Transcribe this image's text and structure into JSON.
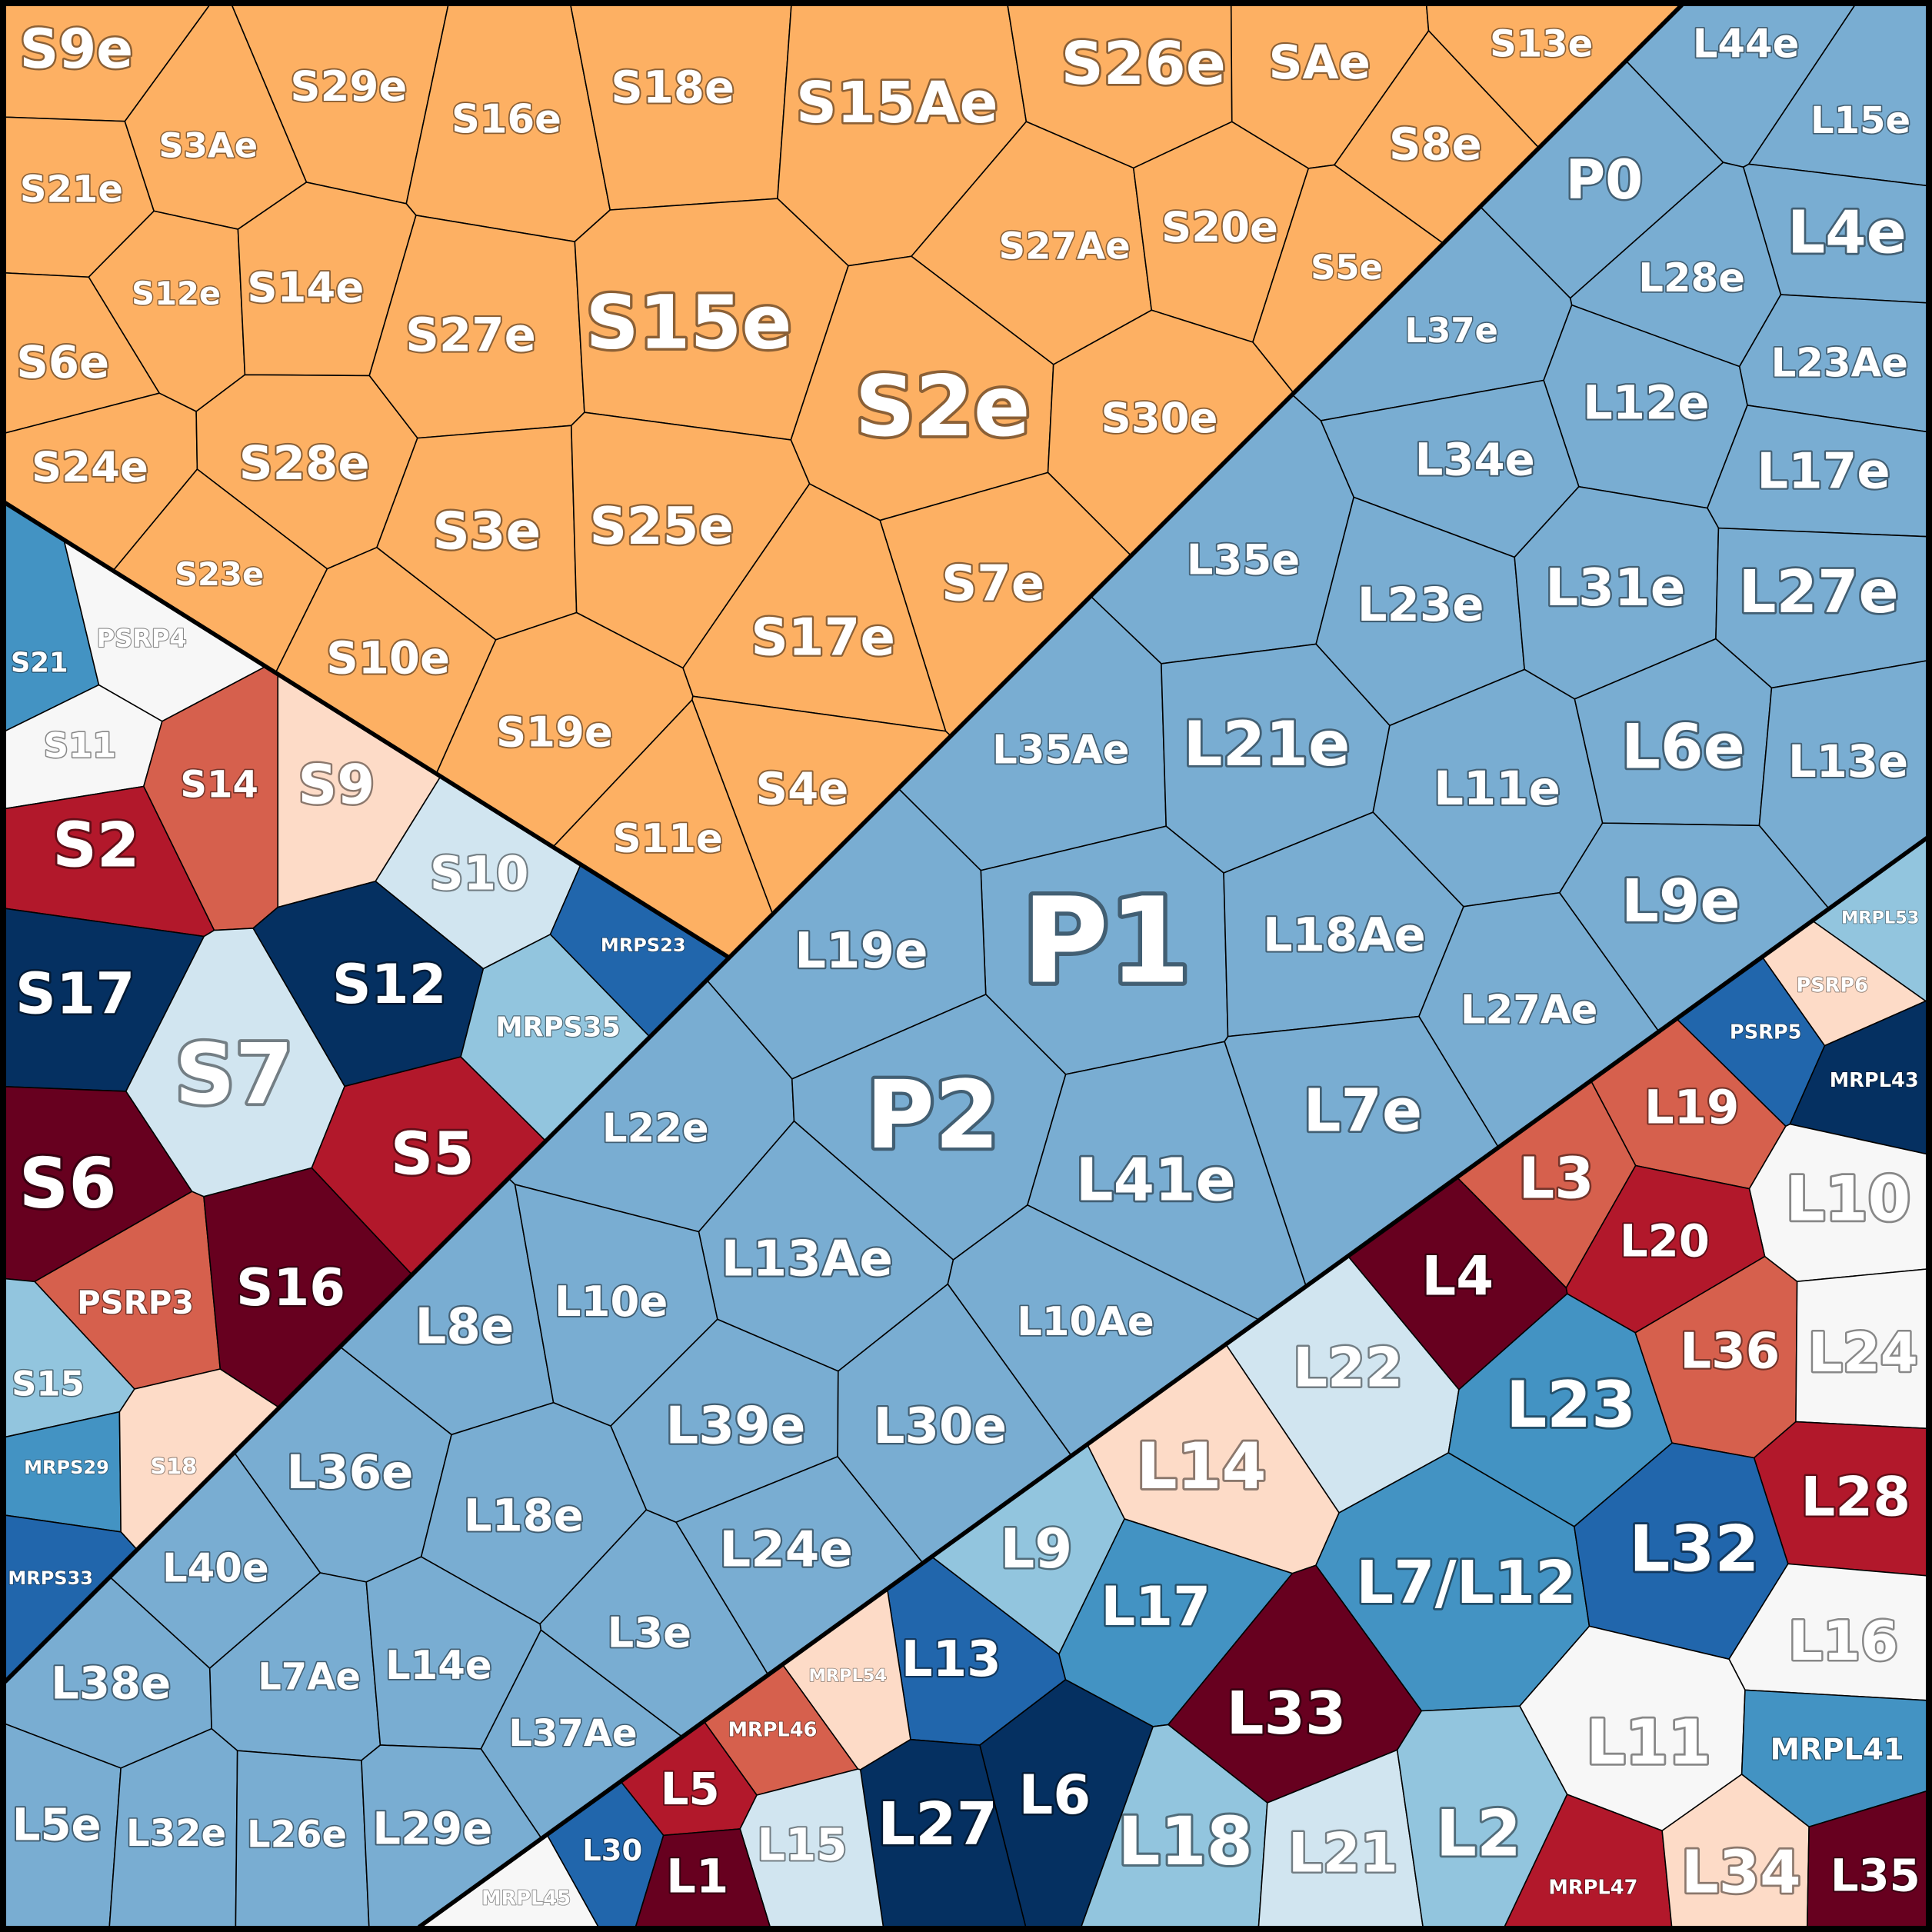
{
  "groups": [
    {
      "color": "#fdb063",
      "cells": [
        {
          "label": "S9e"
        },
        {
          "label": "S29e"
        },
        {
          "label": "S16e"
        },
        {
          "label": "S18e"
        },
        {
          "label": "S15Ae"
        },
        {
          "label": "S26e"
        },
        {
          "label": "SAe"
        },
        {
          "label": "S13e"
        },
        {
          "label": "S21e"
        },
        {
          "label": "S3Ae"
        },
        {
          "label": "S12e"
        },
        {
          "label": "S14e"
        },
        {
          "label": "S27e"
        },
        {
          "label": "S15e"
        },
        {
          "label": "S27Ae"
        },
        {
          "label": "S20e"
        },
        {
          "label": "S8e"
        },
        {
          "label": "S5e"
        },
        {
          "label": "S6e"
        },
        {
          "label": "S2e"
        },
        {
          "label": "S30e"
        },
        {
          "label": "S24e"
        },
        {
          "label": "S28e"
        },
        {
          "label": "S3e"
        },
        {
          "label": "S25e"
        },
        {
          "label": "S7e"
        },
        {
          "label": "S23e"
        },
        {
          "label": "S10e"
        },
        {
          "label": "S17e"
        },
        {
          "label": "S19e"
        },
        {
          "label": "S4e"
        },
        {
          "label": "S11e"
        }
      ]
    },
    {
      "cells": [
        {
          "label": "S21",
          "color": "#4393c3"
        },
        {
          "label": "PSRP4",
          "color": "#f7f7f7"
        },
        {
          "label": "S11",
          "color": "#f7f7f7"
        },
        {
          "label": "S14",
          "color": "#d6604d"
        },
        {
          "label": "S9",
          "color": "#fddbc7"
        },
        {
          "label": "S2",
          "color": "#b2182b"
        },
        {
          "label": "S10",
          "color": "#d1e5f0"
        },
        {
          "label": "MRPS23",
          "color": "#2166ac"
        },
        {
          "label": "S17",
          "color": "#053061"
        },
        {
          "label": "S12",
          "color": "#053061"
        },
        {
          "label": "S7",
          "color": "#d1e5f0"
        },
        {
          "label": "MRPS35",
          "color": "#92c5de"
        },
        {
          "label": "S6",
          "color": "#67001f"
        },
        {
          "label": "S5",
          "color": "#b2182b"
        },
        {
          "label": "PSRP3",
          "color": "#d6604d"
        },
        {
          "label": "S16",
          "color": "#67001f"
        },
        {
          "label": "S15",
          "color": "#92c5de"
        },
        {
          "label": "MRPS29",
          "color": "#4393c3"
        },
        {
          "label": "S18",
          "color": "#fddbc7"
        },
        {
          "label": "MRPS33",
          "color": "#2166ac"
        }
      ]
    },
    {
      "color": "#79add2",
      "cells": [
        {
          "label": "L44e"
        },
        {
          "label": "L15e"
        },
        {
          "label": "P0"
        },
        {
          "label": "L4e"
        },
        {
          "label": "L28e"
        },
        {
          "label": "L37e"
        },
        {
          "label": "L23Ae"
        },
        {
          "label": "L12e"
        },
        {
          "label": "L34e"
        },
        {
          "label": "L17e"
        },
        {
          "label": "L35e"
        },
        {
          "label": "L23e"
        },
        {
          "label": "L31e"
        },
        {
          "label": "L27e"
        },
        {
          "label": "L35Ae"
        },
        {
          "label": "L21e"
        },
        {
          "label": "L11e"
        },
        {
          "label": "L6e"
        },
        {
          "label": "L13e"
        },
        {
          "label": "P1"
        },
        {
          "label": "L19e"
        },
        {
          "label": "L18Ae"
        },
        {
          "label": "L9e"
        },
        {
          "label": "L27Ae"
        },
        {
          "label": "L22e"
        },
        {
          "label": "P2"
        },
        {
          "label": "L7e"
        },
        {
          "label": "L41e"
        },
        {
          "label": "L13Ae"
        },
        {
          "label": "L8e"
        },
        {
          "label": "L10e"
        },
        {
          "label": "L10Ae"
        },
        {
          "label": "L39e"
        },
        {
          "label": "L30e"
        },
        {
          "label": "L36e"
        },
        {
          "label": "L18e"
        },
        {
          "label": "L24e"
        },
        {
          "label": "L40e"
        },
        {
          "label": "L3e"
        },
        {
          "label": "L7Ae"
        },
        {
          "label": "L14e"
        },
        {
          "label": "L38e"
        },
        {
          "label": "L37Ae"
        },
        {
          "label": "L5e"
        },
        {
          "label": "L32e"
        },
        {
          "label": "L26e"
        },
        {
          "label": "L29e"
        }
      ]
    },
    {
      "cells": [
        {
          "label": "MRPL53",
          "color": "#92c5de"
        },
        {
          "label": "PSRP6",
          "color": "#fddbc7"
        },
        {
          "label": "PSRP5",
          "color": "#2166ac"
        },
        {
          "label": "MRPL43",
          "color": "#053061"
        },
        {
          "label": "L19",
          "color": "#d6604d"
        },
        {
          "label": "L3",
          "color": "#d6604d"
        },
        {
          "label": "L10",
          "color": "#f7f7f7"
        },
        {
          "label": "L20",
          "color": "#b2182b"
        },
        {
          "label": "L4",
          "color": "#67001f"
        },
        {
          "label": "L22",
          "color": "#d1e5f0"
        },
        {
          "label": "L23",
          "color": "#4393c3"
        },
        {
          "label": "L36",
          "color": "#d6604d"
        },
        {
          "label": "L24",
          "color": "#f7f7f7"
        },
        {
          "label": "L14",
          "color": "#fddbc7"
        },
        {
          "label": "L28",
          "color": "#b2182b"
        },
        {
          "label": "L9",
          "color": "#92c5de"
        },
        {
          "label": "L7/L12",
          "color": "#4393c3"
        },
        {
          "label": "L32",
          "color": "#2166ac"
        },
        {
          "label": "L17",
          "color": "#4393c3"
        },
        {
          "label": "L13",
          "color": "#2166ac"
        },
        {
          "label": "MRPL54",
          "color": "#fddbc7"
        },
        {
          "label": "L16",
          "color": "#f7f7f7"
        },
        {
          "label": "L33",
          "color": "#67001f"
        },
        {
          "label": "MRPL46",
          "color": "#d6604d"
        },
        {
          "label": "L11",
          "color": "#f7f7f7"
        },
        {
          "label": "MRPL41",
          "color": "#4393c3"
        },
        {
          "label": "L5",
          "color": "#b2182b"
        },
        {
          "label": "L6",
          "color": "#053061"
        },
        {
          "label": "L27",
          "color": "#053061"
        },
        {
          "label": "L30",
          "color": "#2166ac"
        },
        {
          "label": "L18",
          "color": "#92c5de"
        },
        {
          "label": "L15",
          "color": "#d1e5f0"
        },
        {
          "label": "L21",
          "color": "#d1e5f0"
        },
        {
          "label": "L2",
          "color": "#92c5de"
        },
        {
          "label": "L1",
          "color": "#67001f"
        },
        {
          "label": "MRPL47",
          "color": "#b2182b"
        },
        {
          "label": "L34",
          "color": "#fddbc7"
        },
        {
          "label": "L35",
          "color": "#67001f"
        },
        {
          "label": "MRPL45",
          "color": "#f7f7f7"
        }
      ]
    }
  ]
}
